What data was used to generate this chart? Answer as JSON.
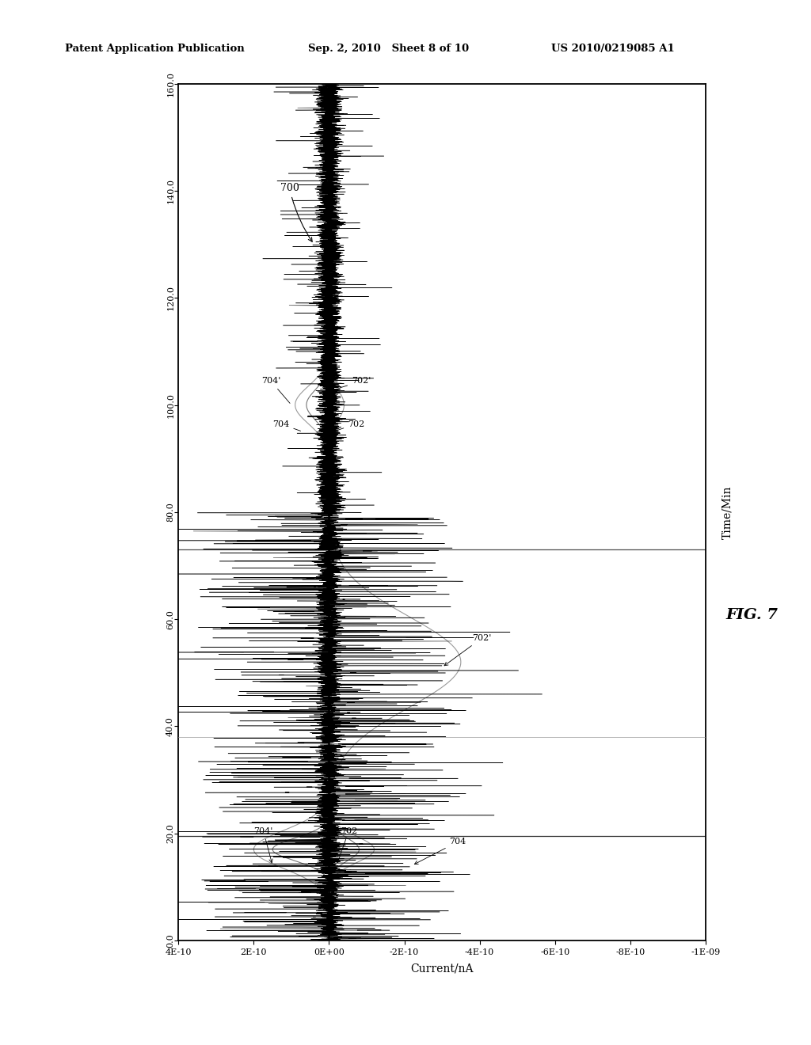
{
  "header_left": "Patent Application Publication",
  "header_mid": "Sep. 2, 2010   Sheet 8 of 10",
  "header_right": "US 2010/0219085 A1",
  "fig_label": "FIG. 7",
  "xlabel": "Current/nA",
  "ylabel": "Time/Min",
  "xlim": [
    4e-10,
    -1e-09
  ],
  "ylim": [
    0.0,
    160.0
  ],
  "xtick_vals": [
    4e-10,
    2e-10,
    0,
    -2e-10,
    -4e-10,
    -6e-10,
    -8e-10,
    -1e-09
  ],
  "xticklabels": [
    "4E-10",
    "2E-10",
    "0E+00",
    "-2E-10",
    "-4E-10",
    "-6E-10",
    "-8E-10",
    "-1E-09"
  ],
  "ytick_vals": [
    0.0,
    20.0,
    40.0,
    60.0,
    80.0,
    100.0,
    120.0,
    140.0,
    160.0
  ],
  "hline1_y": 19.5,
  "hline2_y": 73.0,
  "hline3_y": 38.0,
  "bg_color": "#ffffff"
}
